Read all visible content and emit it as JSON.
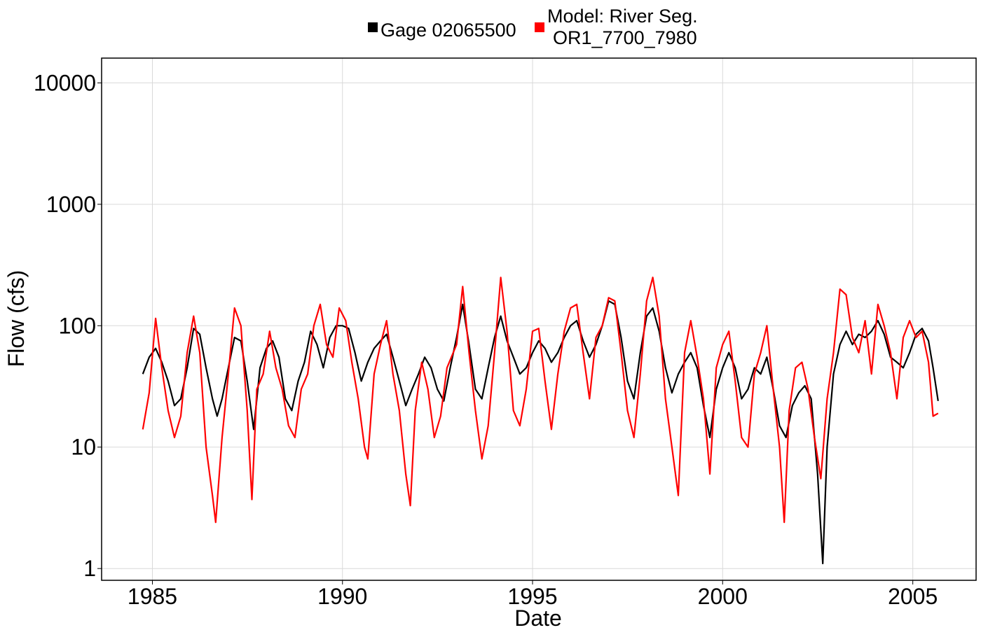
{
  "chart_data": {
    "type": "line",
    "xlabel": "Date",
    "ylabel": "Flow (cfs)",
    "y_scale": "log",
    "ylim": [
      0.8,
      16000
    ],
    "xlim": [
      "1983-09-01",
      "2006-09-01"
    ],
    "grid": true,
    "legend_position": "top",
    "x_ticks": [
      {
        "date": "1985-01-01",
        "label": "1985"
      },
      {
        "date": "1990-01-01",
        "label": "1990"
      },
      {
        "date": "1995-01-01",
        "label": "1995"
      },
      {
        "date": "2000-01-01",
        "label": "2000"
      },
      {
        "date": "2005-01-01",
        "label": "2005"
      }
    ],
    "y_ticks": [
      {
        "value": 1,
        "label": "1"
      },
      {
        "value": 10,
        "label": "10"
      },
      {
        "value": 100,
        "label": "100"
      },
      {
        "value": 1000,
        "label": "1000"
      },
      {
        "value": 10000,
        "label": "10000"
      }
    ],
    "series": [
      {
        "name": "Gage 02065500",
        "color": "#000000",
        "points": [
          [
            "1984-10-01",
            40
          ],
          [
            "1984-12-01",
            55
          ],
          [
            "1985-02-01",
            65
          ],
          [
            "1985-04-01",
            50
          ],
          [
            "1985-06-01",
            35
          ],
          [
            "1985-08-01",
            22
          ],
          [
            "1985-10-01",
            25
          ],
          [
            "1985-12-01",
            45
          ],
          [
            "1986-02-01",
            95
          ],
          [
            "1986-04-01",
            85
          ],
          [
            "1986-06-01",
            45
          ],
          [
            "1986-08-01",
            25
          ],
          [
            "1986-09-15",
            18
          ],
          [
            "1986-11-01",
            25
          ],
          [
            "1987-01-01",
            45
          ],
          [
            "1987-03-01",
            80
          ],
          [
            "1987-05-01",
            75
          ],
          [
            "1987-07-01",
            35
          ],
          [
            "1987-09-01",
            14
          ],
          [
            "1987-11-01",
            45
          ],
          [
            "1988-01-01",
            65
          ],
          [
            "1988-03-01",
            75
          ],
          [
            "1988-05-01",
            55
          ],
          [
            "1988-07-01",
            25
          ],
          [
            "1988-09-01",
            20
          ],
          [
            "1988-11-01",
            35
          ],
          [
            "1989-01-01",
            50
          ],
          [
            "1989-03-01",
            90
          ],
          [
            "1989-05-01",
            70
          ],
          [
            "1989-07-01",
            45
          ],
          [
            "1989-09-01",
            80
          ],
          [
            "1989-11-01",
            100
          ],
          [
            "1990-01-01",
            100
          ],
          [
            "1990-03-01",
            95
          ],
          [
            "1990-05-01",
            60
          ],
          [
            "1990-07-01",
            35
          ],
          [
            "1990-09-01",
            50
          ],
          [
            "1990-11-01",
            65
          ],
          [
            "1991-01-01",
            75
          ],
          [
            "1991-03-01",
            85
          ],
          [
            "1991-05-01",
            55
          ],
          [
            "1991-07-01",
            35
          ],
          [
            "1991-09-01",
            22
          ],
          [
            "1991-11-01",
            30
          ],
          [
            "1992-01-01",
            40
          ],
          [
            "1992-03-01",
            55
          ],
          [
            "1992-05-01",
            45
          ],
          [
            "1992-07-01",
            30
          ],
          [
            "1992-09-01",
            24
          ],
          [
            "1992-11-01",
            45
          ],
          [
            "1993-01-01",
            80
          ],
          [
            "1993-03-01",
            150
          ],
          [
            "1993-05-01",
            70
          ],
          [
            "1993-07-01",
            30
          ],
          [
            "1993-09-01",
            25
          ],
          [
            "1993-11-01",
            45
          ],
          [
            "1994-01-01",
            80
          ],
          [
            "1994-03-01",
            120
          ],
          [
            "1994-05-01",
            75
          ],
          [
            "1994-07-01",
            55
          ],
          [
            "1994-09-01",
            40
          ],
          [
            "1994-11-01",
            45
          ],
          [
            "1995-01-01",
            60
          ],
          [
            "1995-03-01",
            75
          ],
          [
            "1995-05-01",
            65
          ],
          [
            "1995-07-01",
            50
          ],
          [
            "1995-09-01",
            60
          ],
          [
            "1995-11-01",
            80
          ],
          [
            "1996-01-01",
            100
          ],
          [
            "1996-03-01",
            110
          ],
          [
            "1996-05-01",
            75
          ],
          [
            "1996-07-01",
            55
          ],
          [
            "1996-09-01",
            70
          ],
          [
            "1996-11-01",
            100
          ],
          [
            "1997-01-01",
            160
          ],
          [
            "1997-03-01",
            150
          ],
          [
            "1997-05-01",
            80
          ],
          [
            "1997-07-01",
            35
          ],
          [
            "1997-09-01",
            25
          ],
          [
            "1997-11-01",
            60
          ],
          [
            "1998-01-01",
            120
          ],
          [
            "1998-03-01",
            140
          ],
          [
            "1998-05-01",
            90
          ],
          [
            "1998-07-01",
            45
          ],
          [
            "1998-09-01",
            28
          ],
          [
            "1998-11-01",
            40
          ],
          [
            "1999-01-01",
            50
          ],
          [
            "1999-03-01",
            60
          ],
          [
            "1999-05-01",
            45
          ],
          [
            "1999-07-01",
            22
          ],
          [
            "1999-09-01",
            12
          ],
          [
            "1999-11-01",
            30
          ],
          [
            "2000-01-01",
            45
          ],
          [
            "2000-03-01",
            60
          ],
          [
            "2000-05-01",
            45
          ],
          [
            "2000-07-01",
            25
          ],
          [
            "2000-09-01",
            30
          ],
          [
            "2000-11-01",
            45
          ],
          [
            "2001-01-01",
            40
          ],
          [
            "2001-03-01",
            55
          ],
          [
            "2001-05-01",
            30
          ],
          [
            "2001-07-01",
            15
          ],
          [
            "2001-09-01",
            12
          ],
          [
            "2001-11-01",
            22
          ],
          [
            "2002-01-01",
            28
          ],
          [
            "2002-03-01",
            32
          ],
          [
            "2002-05-01",
            25
          ],
          [
            "2002-07-01",
            6
          ],
          [
            "2002-08-20",
            1.1
          ],
          [
            "2002-10-01",
            10
          ],
          [
            "2002-12-01",
            40
          ],
          [
            "2003-02-01",
            70
          ],
          [
            "2003-04-01",
            90
          ],
          [
            "2003-06-01",
            70
          ],
          [
            "2003-08-01",
            85
          ],
          [
            "2003-10-01",
            80
          ],
          [
            "2003-12-01",
            90
          ],
          [
            "2004-02-01",
            110
          ],
          [
            "2004-04-01",
            85
          ],
          [
            "2004-06-01",
            55
          ],
          [
            "2004-08-01",
            50
          ],
          [
            "2004-10-01",
            45
          ],
          [
            "2004-12-01",
            60
          ],
          [
            "2005-02-01",
            85
          ],
          [
            "2005-04-01",
            95
          ],
          [
            "2005-06-01",
            75
          ],
          [
            "2005-07-15",
            45
          ],
          [
            "2005-09-01",
            24
          ]
        ]
      },
      {
        "name": "Model: River Seg.\nOR1_7700_7980",
        "color": "#ff0000",
        "points": [
          [
            "1984-10-01",
            14
          ],
          [
            "1984-12-01",
            28
          ],
          [
            "1985-02-01",
            115
          ],
          [
            "1985-04-01",
            45
          ],
          [
            "1985-06-01",
            20
          ],
          [
            "1985-08-01",
            12
          ],
          [
            "1985-10-01",
            18
          ],
          [
            "1985-12-01",
            60
          ],
          [
            "1986-02-01",
            120
          ],
          [
            "1986-04-01",
            60
          ],
          [
            "1986-06-01",
            10
          ],
          [
            "1986-08-01",
            4
          ],
          [
            "1986-09-01",
            2.4
          ],
          [
            "1986-11-01",
            12
          ],
          [
            "1987-01-01",
            40
          ],
          [
            "1987-03-01",
            140
          ],
          [
            "1987-05-01",
            100
          ],
          [
            "1987-07-01",
            20
          ],
          [
            "1987-08-15",
            3.7
          ],
          [
            "1987-10-01",
            30
          ],
          [
            "1987-12-01",
            40
          ],
          [
            "1988-02-01",
            90
          ],
          [
            "1988-04-01",
            45
          ],
          [
            "1988-06-01",
            30
          ],
          [
            "1988-08-01",
            15
          ],
          [
            "1988-10-01",
            12
          ],
          [
            "1988-12-01",
            30
          ],
          [
            "1989-02-01",
            40
          ],
          [
            "1989-04-01",
            100
          ],
          [
            "1989-06-01",
            150
          ],
          [
            "1989-08-01",
            70
          ],
          [
            "1989-10-01",
            55
          ],
          [
            "1989-12-01",
            140
          ],
          [
            "1990-02-01",
            110
          ],
          [
            "1990-04-01",
            50
          ],
          [
            "1990-06-01",
            25
          ],
          [
            "1990-08-01",
            10
          ],
          [
            "1990-09-01",
            8
          ],
          [
            "1990-11-01",
            40
          ],
          [
            "1991-01-01",
            70
          ],
          [
            "1991-03-01",
            110
          ],
          [
            "1991-05-01",
            40
          ],
          [
            "1991-07-01",
            20
          ],
          [
            "1991-09-01",
            6
          ],
          [
            "1991-10-15",
            3.3
          ],
          [
            "1991-12-01",
            20
          ],
          [
            "1992-02-01",
            50
          ],
          [
            "1992-04-01",
            30
          ],
          [
            "1992-06-01",
            12
          ],
          [
            "1992-08-01",
            18
          ],
          [
            "1992-10-01",
            45
          ],
          [
            "1993-01-01",
            70
          ],
          [
            "1993-03-01",
            210
          ],
          [
            "1993-05-01",
            60
          ],
          [
            "1993-07-01",
            20
          ],
          [
            "1993-09-01",
            8
          ],
          [
            "1993-11-01",
            15
          ],
          [
            "1994-01-01",
            60
          ],
          [
            "1994-03-01",
            250
          ],
          [
            "1994-05-01",
            90
          ],
          [
            "1994-07-01",
            20
          ],
          [
            "1994-09-01",
            15
          ],
          [
            "1994-11-01",
            30
          ],
          [
            "1995-01-01",
            90
          ],
          [
            "1995-03-01",
            95
          ],
          [
            "1995-05-01",
            35
          ],
          [
            "1995-07-01",
            14
          ],
          [
            "1995-09-01",
            40
          ],
          [
            "1995-11-01",
            90
          ],
          [
            "1996-01-01",
            140
          ],
          [
            "1996-03-01",
            150
          ],
          [
            "1996-05-01",
            60
          ],
          [
            "1996-07-01",
            25
          ],
          [
            "1996-09-01",
            80
          ],
          [
            "1996-11-01",
            100
          ],
          [
            "1997-01-01",
            170
          ],
          [
            "1997-03-01",
            160
          ],
          [
            "1997-05-01",
            60
          ],
          [
            "1997-07-01",
            20
          ],
          [
            "1997-09-01",
            12
          ],
          [
            "1997-11-01",
            40
          ],
          [
            "1998-01-01",
            160
          ],
          [
            "1998-03-01",
            250
          ],
          [
            "1998-05-01",
            120
          ],
          [
            "1998-07-01",
            25
          ],
          [
            "1998-09-01",
            10
          ],
          [
            "1998-11-01",
            4
          ],
          [
            "1999-01-01",
            60
          ],
          [
            "1999-03-01",
            110
          ],
          [
            "1999-05-01",
            55
          ],
          [
            "1999-07-01",
            25
          ],
          [
            "1999-09-01",
            6
          ],
          [
            "1999-11-01",
            45
          ],
          [
            "2000-01-01",
            70
          ],
          [
            "2000-03-01",
            90
          ],
          [
            "2000-05-01",
            35
          ],
          [
            "2000-07-01",
            12
          ],
          [
            "2000-09-01",
            10
          ],
          [
            "2000-11-01",
            40
          ],
          [
            "2001-01-01",
            60
          ],
          [
            "2001-03-01",
            100
          ],
          [
            "2001-05-01",
            30
          ],
          [
            "2001-07-01",
            10
          ],
          [
            "2001-08-15",
            2.4
          ],
          [
            "2001-10-01",
            20
          ],
          [
            "2001-12-01",
            45
          ],
          [
            "2002-02-01",
            50
          ],
          [
            "2002-04-01",
            30
          ],
          [
            "2002-06-01",
            12
          ],
          [
            "2002-08-01",
            5.5
          ],
          [
            "2002-10-01",
            25
          ],
          [
            "2002-12-01",
            60
          ],
          [
            "2003-02-01",
            200
          ],
          [
            "2003-04-01",
            180
          ],
          [
            "2003-06-01",
            80
          ],
          [
            "2003-08-01",
            60
          ],
          [
            "2003-10-01",
            110
          ],
          [
            "2003-12-01",
            40
          ],
          [
            "2004-02-01",
            150
          ],
          [
            "2004-04-01",
            100
          ],
          [
            "2004-06-01",
            60
          ],
          [
            "2004-08-01",
            25
          ],
          [
            "2004-10-01",
            80
          ],
          [
            "2004-12-01",
            110
          ],
          [
            "2005-02-01",
            80
          ],
          [
            "2005-04-01",
            90
          ],
          [
            "2005-06-01",
            50
          ],
          [
            "2005-07-15",
            18
          ],
          [
            "2005-09-01",
            19
          ]
        ]
      }
    ]
  }
}
